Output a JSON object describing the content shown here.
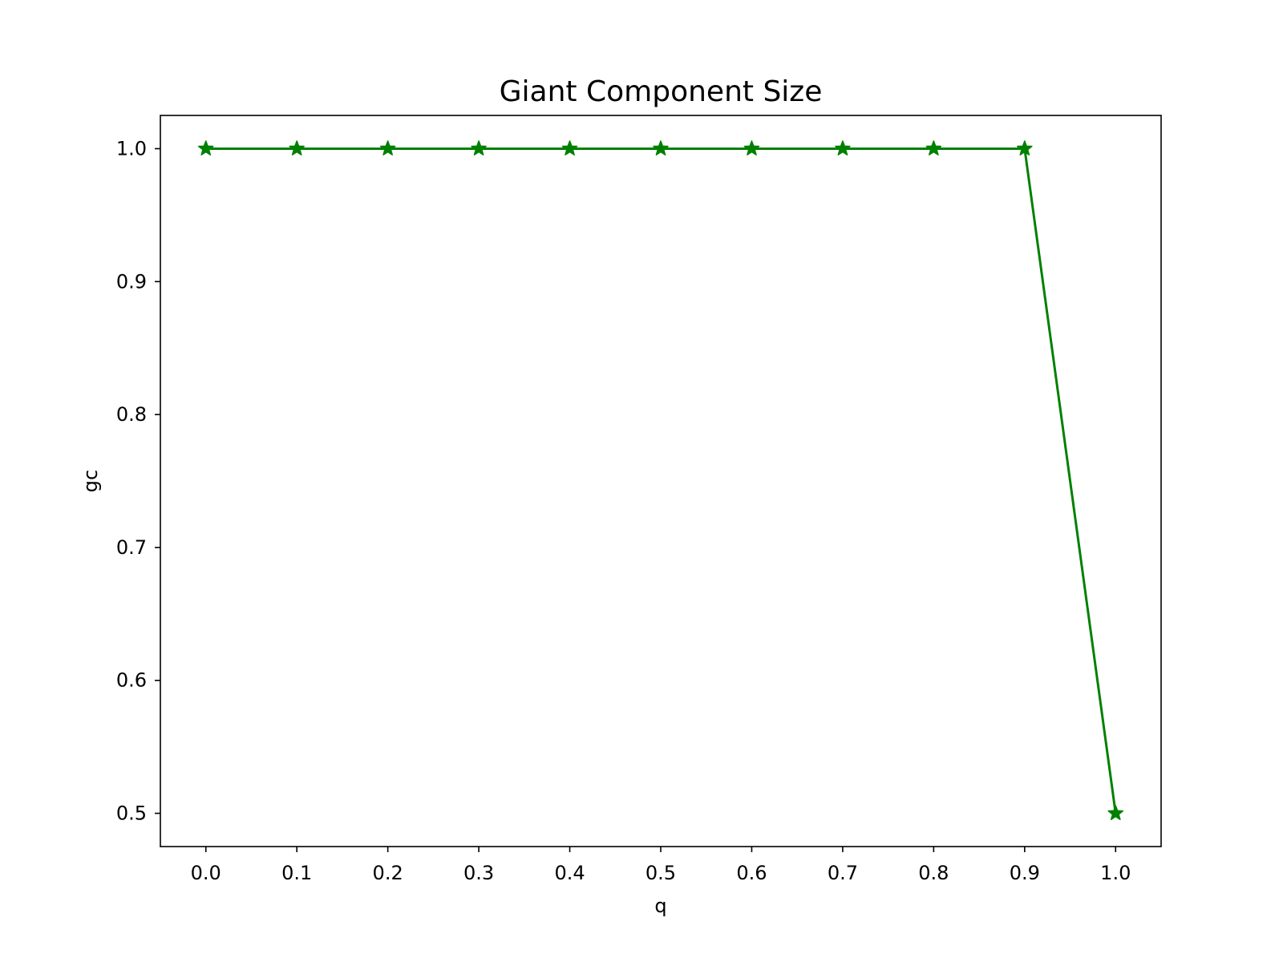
{
  "chart_data": {
    "type": "line",
    "title": "Giant Component Size",
    "xlabel": "q",
    "ylabel": "gc",
    "x": [
      0.0,
      0.1,
      0.2,
      0.3,
      0.4,
      0.5,
      0.6,
      0.7,
      0.8,
      0.9,
      1.0
    ],
    "series": [
      {
        "values": [
          1.0,
          1.0,
          1.0,
          1.0,
          1.0,
          1.0,
          1.0,
          1.0,
          1.0,
          1.0,
          0.5
        ],
        "color": "#008000",
        "marker": "star"
      }
    ],
    "xticks": [
      "0.0",
      "0.1",
      "0.2",
      "0.3",
      "0.4",
      "0.5",
      "0.6",
      "0.7",
      "0.8",
      "0.9",
      "1.0"
    ],
    "yticks": [
      "0.5",
      "0.6",
      "0.7",
      "0.8",
      "0.9",
      "1.0"
    ],
    "xlim": [
      -0.05,
      1.05
    ],
    "ylim": [
      0.475,
      1.025
    ],
    "grid": false
  }
}
